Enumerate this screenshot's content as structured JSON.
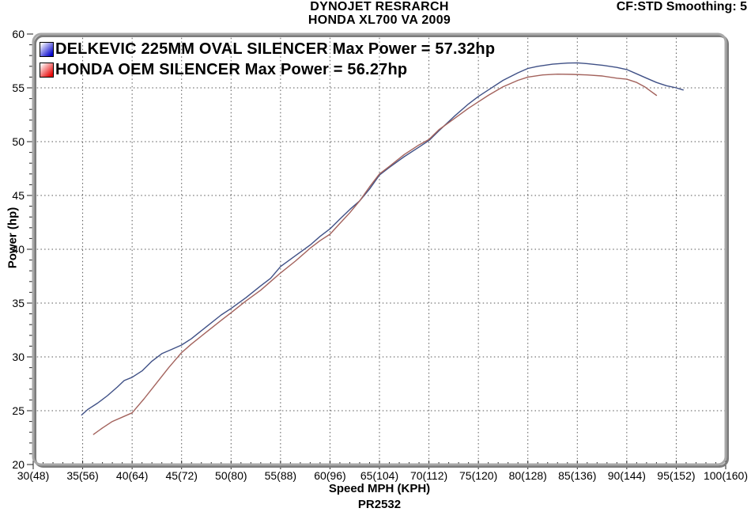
{
  "chart_data": {
    "type": "line",
    "title": "DYNOJET RESRARCH",
    "subtitle": "HONDA XL700 VA  2009",
    "annotation": "CF:STD Smoothing: 5",
    "xlabel": "Speed MPH (KPH)",
    "ylabel": "Power (hp)",
    "footnote": "PR2532",
    "xlim": [
      30,
      100
    ],
    "ylim": [
      20,
      60
    ],
    "grid": true,
    "grid_style": "dotted",
    "legend_position": "top-left",
    "x_ticks": [
      {
        "value": 30,
        "label": "30(48)"
      },
      {
        "value": 35,
        "label": "35(56)"
      },
      {
        "value": 40,
        "label": "40(64)"
      },
      {
        "value": 45,
        "label": "45(72)"
      },
      {
        "value": 50,
        "label": "50(80)"
      },
      {
        "value": 55,
        "label": "55(88)"
      },
      {
        "value": 60,
        "label": "60(96)"
      },
      {
        "value": 65,
        "label": "65(104)"
      },
      {
        "value": 70,
        "label": "70(112)"
      },
      {
        "value": 75,
        "label": "75(120)"
      },
      {
        "value": 80,
        "label": "80(128)"
      },
      {
        "value": 85,
        "label": "85(136)"
      },
      {
        "value": 90,
        "label": "90(144)"
      },
      {
        "value": 95,
        "label": "95(152)"
      },
      {
        "value": 100,
        "label": "100(160)"
      }
    ],
    "y_ticks": [
      {
        "value": 20,
        "label": "20"
      },
      {
        "value": 25,
        "label": "25"
      },
      {
        "value": 30,
        "label": "30"
      },
      {
        "value": 35,
        "label": "35"
      },
      {
        "value": 40,
        "label": "40"
      },
      {
        "value": 45,
        "label": "45"
      },
      {
        "value": 50,
        "label": "50"
      },
      {
        "value": 55,
        "label": "55"
      },
      {
        "value": 60,
        "label": "60"
      }
    ],
    "series": [
      {
        "id": "delkevic",
        "name": "DELKEVIC 225MM OVAL SILENCER",
        "legend_label": "DELKEVIC 225MM OVAL SILENCER Max Power = 57.32hp",
        "max_power_hp": 57.32,
        "color": "#3f5086",
        "swatch_gradient": [
          "#ffffff",
          "#0000cc"
        ],
        "points": [
          [
            34.9,
            24.6
          ],
          [
            35.5,
            25.1
          ],
          [
            36.5,
            25.7
          ],
          [
            37.5,
            26.4
          ],
          [
            38.5,
            27.2
          ],
          [
            39.2,
            27.8
          ],
          [
            40,
            28.1
          ],
          [
            41,
            28.7
          ],
          [
            42,
            29.6
          ],
          [
            43,
            30.3
          ],
          [
            44,
            30.7
          ],
          [
            45,
            31.1
          ],
          [
            46,
            31.7
          ],
          [
            47.5,
            32.8
          ],
          [
            49,
            33.9
          ],
          [
            50,
            34.5
          ],
          [
            51.5,
            35.5
          ],
          [
            53,
            36.6
          ],
          [
            54,
            37.3
          ],
          [
            55,
            38.4
          ],
          [
            56.5,
            39.4
          ],
          [
            58,
            40.4
          ],
          [
            59,
            41.2
          ],
          [
            60,
            41.9
          ],
          [
            61,
            42.8
          ],
          [
            62,
            43.7
          ],
          [
            63,
            44.5
          ],
          [
            64,
            45.6
          ],
          [
            65,
            46.9
          ],
          [
            66,
            47.6
          ],
          [
            67.5,
            48.6
          ],
          [
            69,
            49.5
          ],
          [
            70,
            50.1
          ],
          [
            71,
            51.0
          ],
          [
            72.5,
            52.3
          ],
          [
            74,
            53.5
          ],
          [
            75,
            54.2
          ],
          [
            76,
            54.8
          ],
          [
            77.5,
            55.7
          ],
          [
            79,
            56.4
          ],
          [
            80,
            56.8
          ],
          [
            81,
            57.0
          ],
          [
            82.5,
            57.2
          ],
          [
            84,
            57.3
          ],
          [
            85,
            57.32
          ],
          [
            86,
            57.25
          ],
          [
            87.5,
            57.1
          ],
          [
            89,
            56.9
          ],
          [
            90,
            56.7
          ],
          [
            91,
            56.3
          ],
          [
            92,
            55.9
          ],
          [
            93,
            55.5
          ],
          [
            94,
            55.2
          ],
          [
            95,
            55.0
          ],
          [
            95.7,
            54.8
          ]
        ]
      },
      {
        "id": "honda-oem",
        "name": "HONDA OEM SILENCER",
        "legend_label": "HONDA OEM SILENCER Max Power = 56.27hp",
        "max_power_hp": 56.27,
        "color": "#a3625c",
        "swatch_gradient": [
          "#ffffff",
          "#e60000"
        ],
        "points": [
          [
            36.1,
            22.8
          ],
          [
            37,
            23.4
          ],
          [
            38,
            24.0
          ],
          [
            39,
            24.4
          ],
          [
            40,
            24.8
          ],
          [
            41.2,
            26.1
          ],
          [
            42.5,
            27.6
          ],
          [
            43.7,
            29.0
          ],
          [
            45,
            30.4
          ],
          [
            46,
            31.2
          ],
          [
            47.5,
            32.3
          ],
          [
            49,
            33.4
          ],
          [
            50,
            34.1
          ],
          [
            51.5,
            35.2
          ],
          [
            53,
            36.2
          ],
          [
            54,
            37.0
          ],
          [
            55,
            37.8
          ],
          [
            56.5,
            38.9
          ],
          [
            58,
            40.1
          ],
          [
            59,
            40.8
          ],
          [
            60,
            41.4
          ],
          [
            61,
            42.4
          ],
          [
            62,
            43.4
          ],
          [
            63,
            44.5
          ],
          [
            64,
            45.8
          ],
          [
            65,
            47.0
          ],
          [
            66,
            47.7
          ],
          [
            67.5,
            48.8
          ],
          [
            69,
            49.7
          ],
          [
            70,
            50.2
          ],
          [
            71,
            51.1
          ],
          [
            72.5,
            52.1
          ],
          [
            74,
            53.1
          ],
          [
            75,
            53.7
          ],
          [
            76,
            54.3
          ],
          [
            77.5,
            55.1
          ],
          [
            79,
            55.7
          ],
          [
            80,
            56.0
          ],
          [
            81.5,
            56.2
          ],
          [
            83,
            56.27
          ],
          [
            84.5,
            56.25
          ],
          [
            86,
            56.2
          ],
          [
            87.5,
            56.1
          ],
          [
            89,
            55.9
          ],
          [
            90,
            55.8
          ],
          [
            91,
            55.5
          ],
          [
            91.8,
            55.1
          ],
          [
            92.4,
            54.7
          ],
          [
            93,
            54.3
          ]
        ]
      }
    ],
    "frame_color": "#a8a8a8",
    "frame_shadow_color": "#7c7c7c",
    "grid_color": "#555555",
    "tick_color": "#222222"
  }
}
